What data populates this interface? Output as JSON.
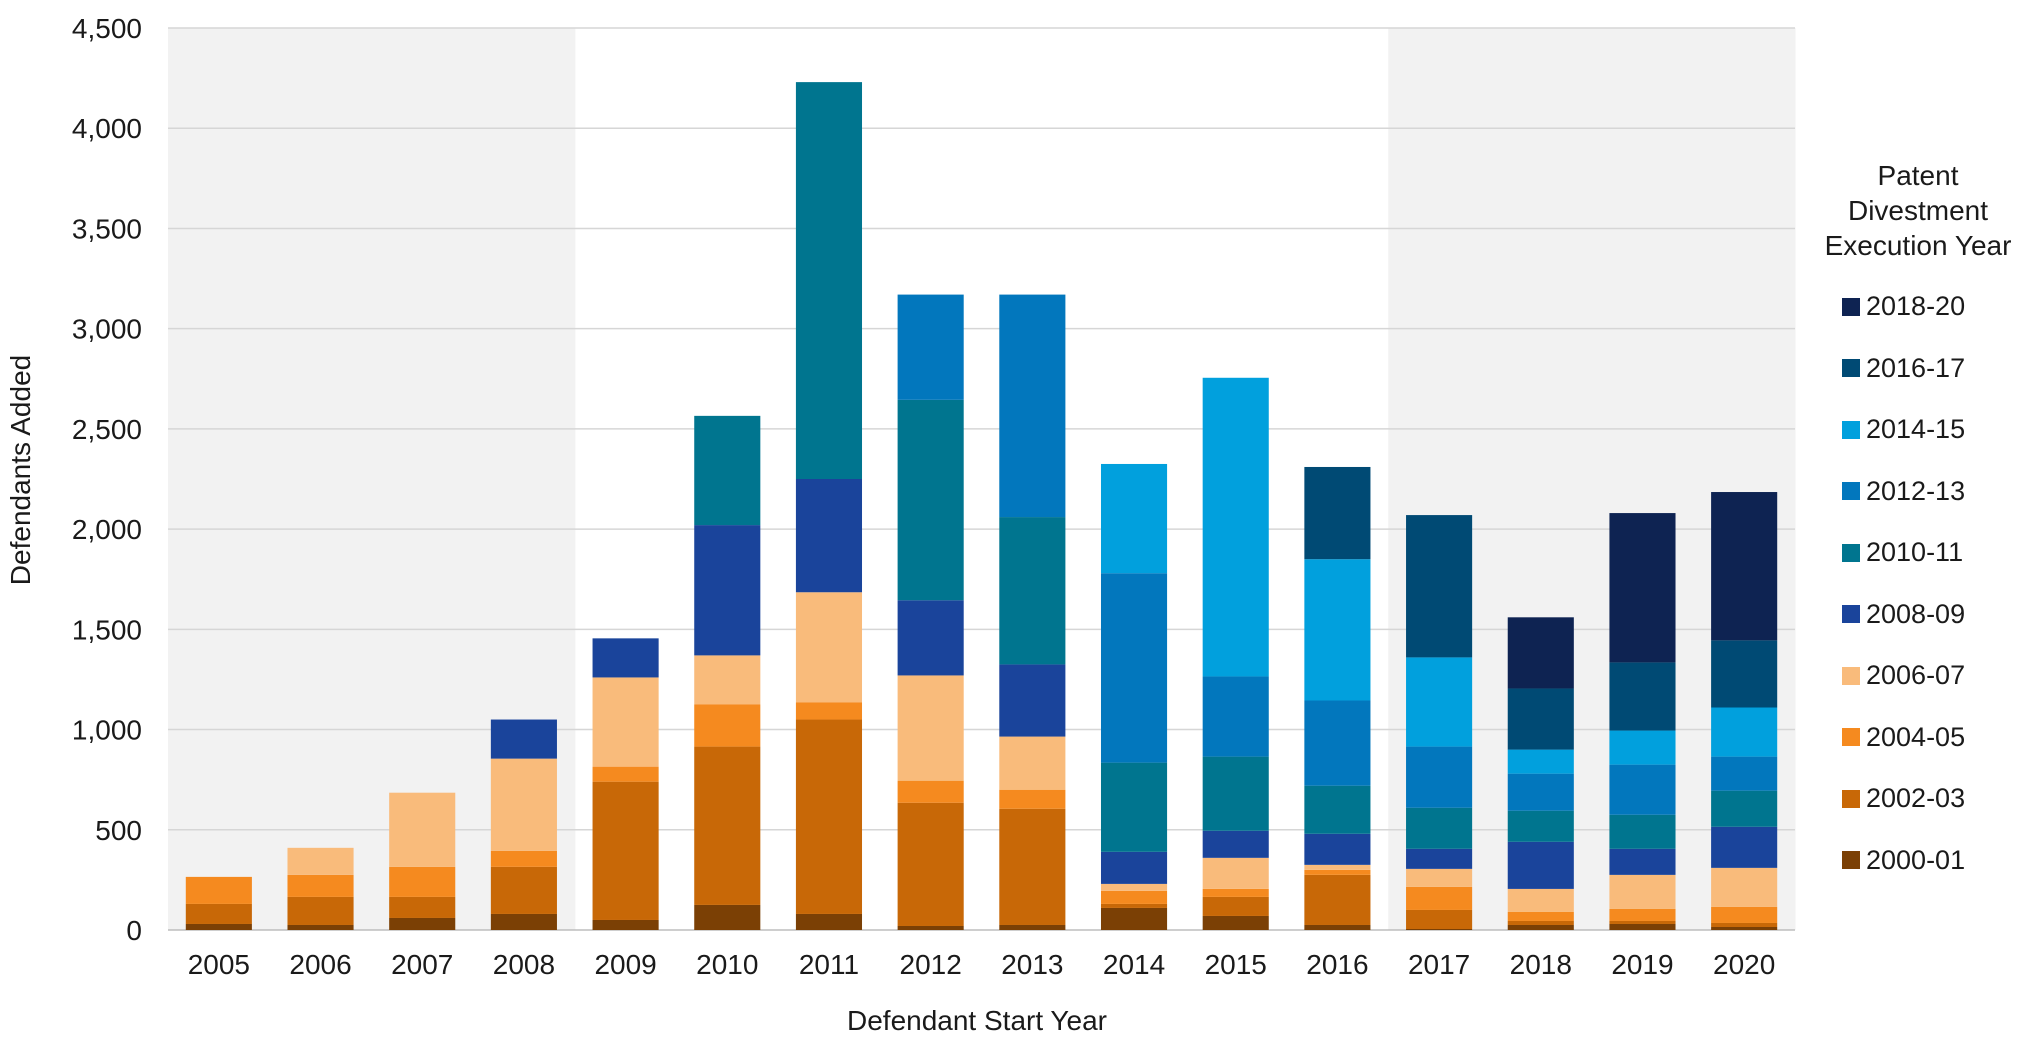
{
  "chart_data": {
    "type": "bar",
    "stacked": true,
    "xlabel": "Defendant Start Year",
    "ylabel": "Defendants Added",
    "ylim": [
      0,
      4500
    ],
    "yticks": [
      0,
      500,
      1000,
      1500,
      2000,
      2500,
      3000,
      3500,
      4000,
      4500
    ],
    "ytick_labels": [
      "0",
      "500",
      "1,000",
      "1,500",
      "2,000",
      "2,500",
      "3,000",
      "3,500",
      "4,000",
      "4,500"
    ],
    "grid": true,
    "shaded_categories": [
      "2005",
      "2006",
      "2007",
      "2008",
      "2017",
      "2018",
      "2019",
      "2020"
    ],
    "shade_color": "#f2f2f2",
    "categories": [
      "2005",
      "2006",
      "2007",
      "2008",
      "2009",
      "2010",
      "2011",
      "2012",
      "2013",
      "2014",
      "2015",
      "2016",
      "2017",
      "2018",
      "2019",
      "2020"
    ],
    "series": [
      {
        "name": "2000-01",
        "color": "#7b4005",
        "values": [
          30,
          25,
          60,
          80,
          50,
          125,
          80,
          20,
          25,
          110,
          70,
          25,
          5,
          25,
          30,
          15
        ]
      },
      {
        "name": "2002-03",
        "color": "#c86807",
        "values": [
          100,
          140,
          105,
          235,
          690,
          790,
          970,
          615,
          580,
          20,
          95,
          250,
          95,
          20,
          15,
          20
        ]
      },
      {
        "name": "2004-05",
        "color": "#f58a1f",
        "values": [
          135,
          110,
          150,
          80,
          75,
          210,
          85,
          110,
          95,
          65,
          40,
          25,
          115,
          45,
          60,
          80
        ]
      },
      {
        "name": "2006-07",
        "color": "#f9bb7b",
        "values": [
          0,
          135,
          370,
          460,
          445,
          245,
          550,
          525,
          265,
          35,
          155,
          25,
          90,
          115,
          170,
          195
        ]
      },
      {
        "name": "2008-09",
        "color": "#1a449b",
        "values": [
          0,
          0,
          0,
          195,
          195,
          650,
          565,
          375,
          360,
          160,
          135,
          155,
          100,
          235,
          130,
          205
        ]
      },
      {
        "name": "2010-11",
        "color": "#00758f",
        "values": [
          0,
          0,
          0,
          0,
          0,
          545,
          1980,
          1000,
          735,
          445,
          370,
          240,
          205,
          155,
          170,
          180
        ]
      },
      {
        "name": "2012-13",
        "color": "#0277bd",
        "values": [
          0,
          0,
          0,
          0,
          0,
          0,
          0,
          525,
          1110,
          945,
          400,
          425,
          305,
          185,
          250,
          170
        ]
      },
      {
        "name": "2014-15",
        "color": "#01a0dd",
        "values": [
          0,
          0,
          0,
          0,
          0,
          0,
          0,
          0,
          0,
          545,
          1490,
          705,
          445,
          120,
          170,
          245
        ]
      },
      {
        "name": "2016-17",
        "color": "#004a74",
        "values": [
          0,
          0,
          0,
          0,
          0,
          0,
          0,
          0,
          0,
          0,
          0,
          460,
          710,
          305,
          340,
          335
        ]
      },
      {
        "name": "2018-20",
        "color": "#0e2352",
        "values": [
          0,
          0,
          0,
          0,
          0,
          0,
          0,
          0,
          0,
          0,
          0,
          0,
          0,
          355,
          745,
          740
        ]
      }
    ]
  },
  "legend": {
    "title": "Patent Divestment Execution Year",
    "placement": "right",
    "order": [
      "2018-20",
      "2016-17",
      "2014-15",
      "2012-13",
      "2010-11",
      "2008-09",
      "2006-07",
      "2004-05",
      "2002-03",
      "2000-01"
    ]
  }
}
